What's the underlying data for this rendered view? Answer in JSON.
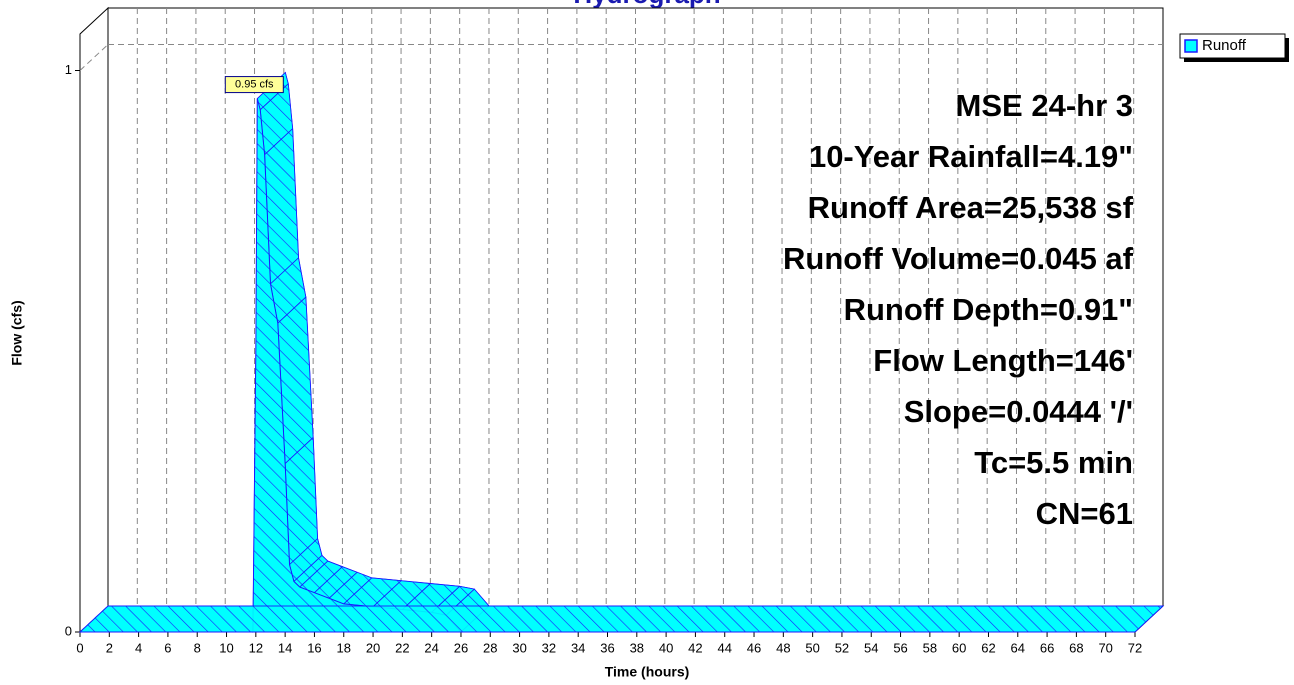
{
  "chart_data": {
    "type": "area",
    "title": "Hydrograph",
    "x_label": "Time  (hours)",
    "y_label": "Flow  (cfs)",
    "x": [
      0,
      11.8,
      12.0,
      12.1,
      12.3,
      12.6,
      13,
      13.5,
      14,
      14.3,
      14.6,
      15,
      16,
      17,
      18,
      20,
      22,
      24,
      25,
      26,
      72
    ],
    "series": [
      {
        "name": "Runoff",
        "color": "#00ffff",
        "values": [
          0,
          0,
          0.5,
          0.95,
          0.93,
          0.85,
          0.62,
          0.55,
          0.3,
          0.12,
          0.09,
          0.08,
          0.07,
          0.06,
          0.05,
          0.045,
          0.04,
          0.035,
          0.03,
          0,
          0
        ],
        "value_labels": [
          null,
          null,
          null,
          "0.95 cfs",
          null,
          null,
          null,
          null,
          null,
          null,
          null,
          null,
          null,
          null,
          null,
          null,
          null,
          null,
          null,
          null,
          null
        ]
      }
    ],
    "xlim": [
      0,
      72
    ],
    "xticks": [
      0,
      2,
      4,
      6,
      8,
      10,
      12,
      14,
      16,
      18,
      20,
      22,
      24,
      26,
      28,
      30,
      32,
      34,
      36,
      38,
      40,
      42,
      44,
      46,
      48,
      50,
      52,
      54,
      56,
      58,
      60,
      62,
      64,
      66,
      68,
      70,
      72
    ],
    "ylim": [
      0,
      1.065
    ],
    "yticks": [
      0,
      1
    ],
    "grid": true,
    "legend": "top-right",
    "annotations": [
      "MSE 24-hr 3",
      "10-Year Rainfall=4.19\"",
      "Runoff Area=25,538 sf",
      "Runoff Volume=0.045 af",
      "Runoff Depth=0.91\"",
      "Flow Length=146'",
      "Slope=0.0444 '/'",
      "Tc=5.5 min",
      "CN=61"
    ]
  }
}
